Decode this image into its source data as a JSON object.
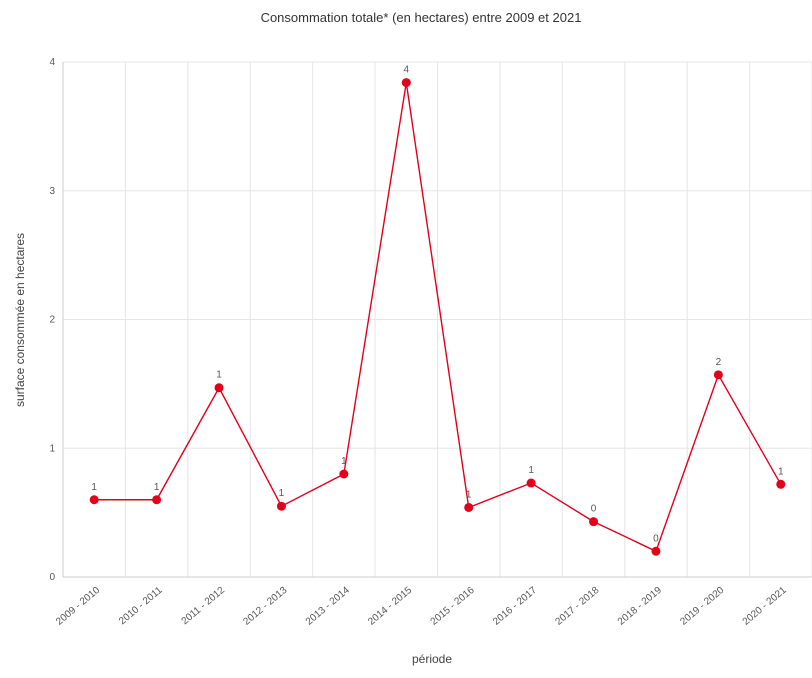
{
  "chart_data": {
    "type": "line",
    "title": "Consommation totale* (en hectares) entre 2009 et 2021",
    "xlabel": "période",
    "ylabel": "surface consommée en hectares",
    "ylim": [
      0,
      4
    ],
    "yticks": [
      "0",
      "1",
      "2",
      "3",
      "4"
    ],
    "grid": true,
    "categories": [
      "2009 - 2010",
      "2010 - 2011",
      "2011 - 2012",
      "2012 - 2013",
      "2013 - 2014",
      "2014 - 2015",
      "2015 - 2016",
      "2016 - 2017",
      "2017 - 2018",
      "2018 - 2019",
      "2019 - 2020",
      "2020 - 2021"
    ],
    "series": [
      {
        "values": [
          0.6,
          0.6,
          1.47,
          0.55,
          0.8,
          3.84,
          0.54,
          0.73,
          0.43,
          0.2,
          1.57,
          0.72
        ],
        "data_labels": [
          "1",
          "1",
          "1",
          "1",
          "1",
          "4",
          "1",
          "1",
          "0",
          "0",
          "2",
          "1"
        ],
        "color": "#e3001b"
      }
    ],
    "colors": {
      "grid": "#e6e6e6",
      "axis": "#cccccc",
      "line": "#e3001b"
    }
  }
}
